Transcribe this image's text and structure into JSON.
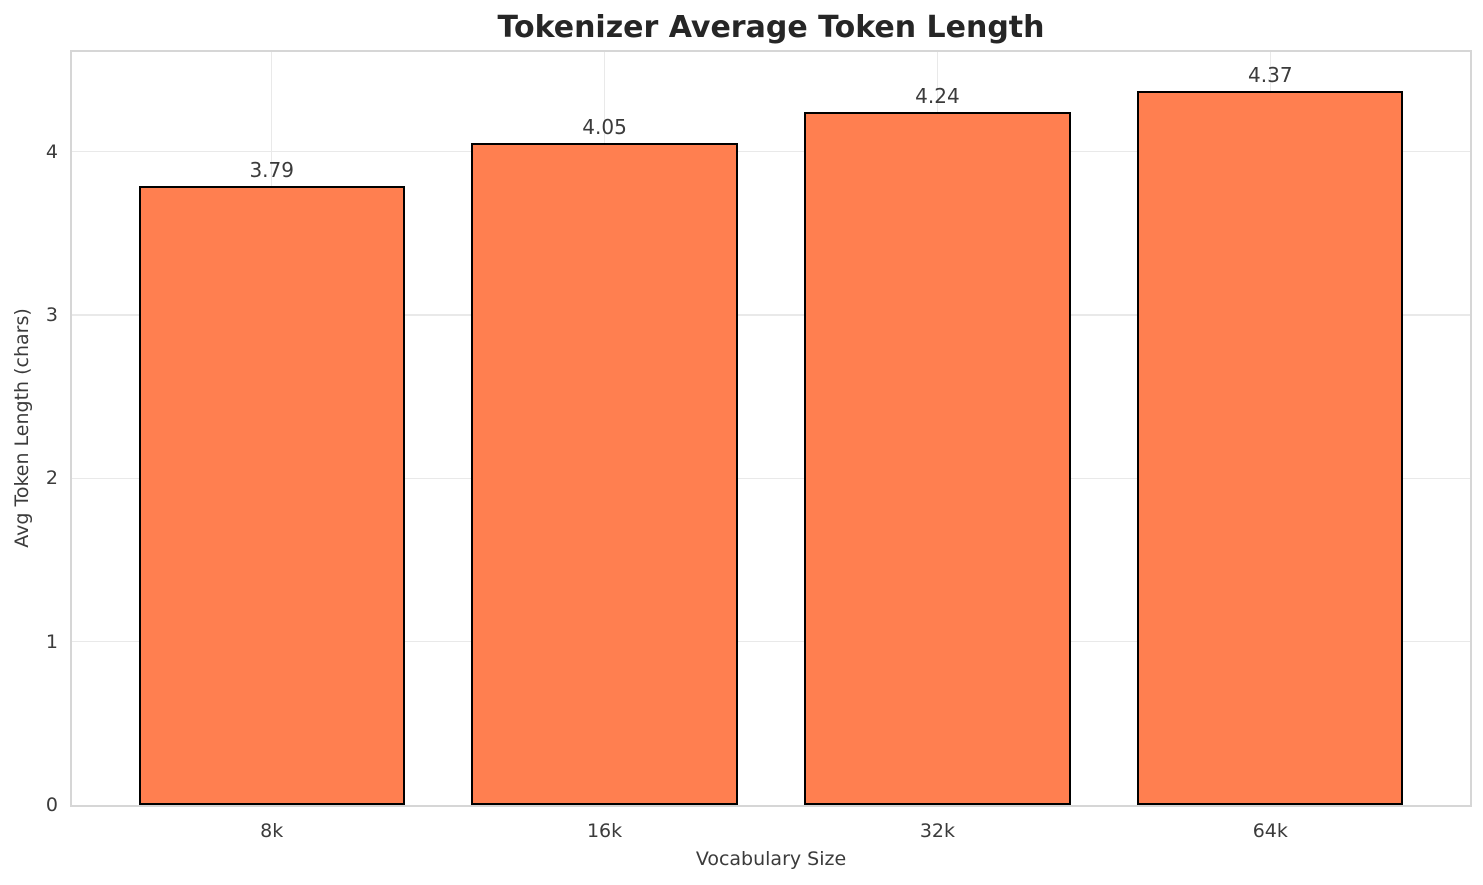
{
  "chart_data": {
    "type": "bar",
    "title": "Tokenizer Average Token Length",
    "xlabel": "Vocabulary Size",
    "ylabel": "Avg Token Length (chars)",
    "categories": [
      "8k",
      "16k",
      "32k",
      "64k"
    ],
    "values": [
      3.79,
      4.05,
      4.24,
      4.37
    ],
    "bar_labels": [
      "3.79",
      "4.05",
      "4.24",
      "4.37"
    ],
    "yticks": [
      "0",
      "1",
      "2",
      "3",
      "4"
    ],
    "ylim": [
      0,
      4.61
    ],
    "xlim": [
      -0.6,
      3.6
    ],
    "bar_width": 0.8,
    "grid": "both",
    "legend": "none",
    "colors": {
      "bar_fill": "#FF7F50",
      "bar_edge": "#000000",
      "grid": "#E9E9E9",
      "spine": "#D6D6D6",
      "title_text": "#262626",
      "tick_text": "#3B3B3B",
      "background": "#FFFFFF"
    }
  }
}
